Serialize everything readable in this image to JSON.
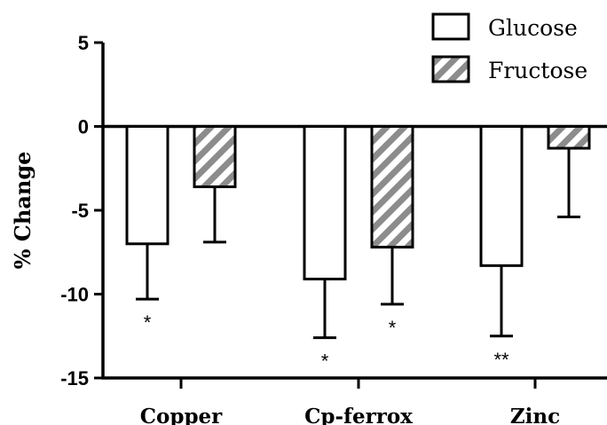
{
  "chart_data": {
    "type": "bar",
    "categories": [
      "Copper",
      "Cp-ferrox",
      "Zinc"
    ],
    "ylabel": "% Change",
    "xlabel": "",
    "ylim": [
      -15,
      5
    ],
    "yticks": [
      5,
      0,
      -5,
      -10,
      -15
    ],
    "grid": false,
    "legend_position": "top-right",
    "series": [
      {
        "name": "Glucose",
        "fill": "white",
        "values": [
          -7.0,
          -9.1,
          -8.3
        ],
        "error_low": [
          -10.3,
          -12.6,
          -12.5
        ],
        "significance": [
          "*",
          "*",
          "**"
        ]
      },
      {
        "name": "Fructose",
        "fill": "hatched",
        "values": [
          -3.6,
          -7.2,
          -1.3
        ],
        "error_low": [
          -6.9,
          -10.6,
          -5.4
        ],
        "significance": [
          "",
          "*",
          ""
        ]
      }
    ],
    "colors": {
      "hatch": "#8c8c8c",
      "stroke": "#000000",
      "bar_fill": "#ffffff"
    }
  }
}
